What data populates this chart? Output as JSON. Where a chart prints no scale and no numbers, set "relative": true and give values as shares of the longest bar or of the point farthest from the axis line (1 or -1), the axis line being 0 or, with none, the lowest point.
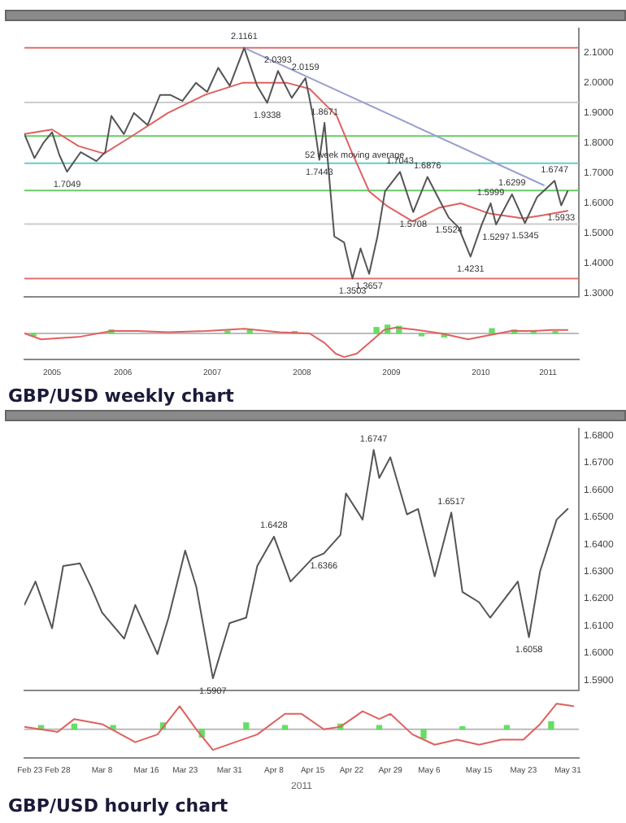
{
  "chart_data": [
    {
      "type": "line",
      "tick_labels": "y",
      "xlim": [
        "2005-05-25",
        "2011-08-05"
      ],
      "ylim": [
        1.29,
        2.18
      ],
      "yticks": [
        {
          "value": 1.3,
          "label": "1.3000"
        },
        {
          "value": 1.4,
          "label": "1.4000"
        },
        {
          "value": 1.5,
          "label": "1.5000"
        },
        {
          "value": 1.6,
          "label": "1.6000"
        },
        {
          "value": 1.7,
          "label": "1.7000"
        },
        {
          "value": 1.8,
          "label": "1.8000"
        },
        {
          "value": 1.9,
          "label": "1.9000"
        },
        {
          "value": 2.0,
          "label": "2.0000"
        },
        {
          "value": 2.1,
          "label": "2.1000"
        }
      ],
      "series": [
        {
          "color": "#555555",
          "x": [
            "2005-05-25",
            "2005-07-05",
            "2005-08-10",
            "2005-09-15",
            "2005-10-15",
            "2005-11-15",
            "2006-01-10",
            "2006-03-15",
            "2006-04-20",
            "2006-05-15",
            "2006-07-05",
            "2006-08-15",
            "2006-10-10",
            "2006-11-30",
            "2007-01-10",
            "2007-03-01",
            "2007-04-25",
            "2007-06-10",
            "2007-07-25",
            "2007-09-10",
            "2007-11-08",
            "2007-12-31",
            "2008-02-10",
            "2008-03-25",
            "2008-05-20",
            "2008-07-15",
            "2008-08-15",
            "2008-09-10",
            "2008-10-01",
            "2008-11-10",
            "2008-12-20",
            "2009-01-23",
            "2009-02-25",
            "2009-04-01",
            "2009-05-05",
            "2009-06-05",
            "2009-08-05",
            "2009-09-28",
            "2009-11-25",
            "2010-01-20",
            "2010-02-20",
            "2010-04-01",
            "2010-05-20",
            "2010-07-05",
            "2010-08-10",
            "2010-09-01",
            "2010-11-05",
            "2010-12-28",
            "2011-02-15",
            "2011-04-28",
            "2011-05-25",
            "2011-06-20"
          ],
          "values": [
            1.83,
            1.75,
            1.8,
            1.836,
            1.76,
            1.7049,
            1.77,
            1.74,
            1.77,
            1.89,
            1.83,
            1.9,
            1.86,
            1.96,
            1.96,
            1.94,
            2.0,
            1.97,
            2.05,
            1.99,
            2.1161,
            1.99,
            1.9338,
            2.0393,
            1.95,
            2.0159,
            1.89,
            1.7443,
            1.8671,
            1.49,
            1.47,
            1.3503,
            1.45,
            1.3657,
            1.49,
            1.64,
            1.7043,
            1.5708,
            1.6876,
            1.6,
            1.5524,
            1.52,
            1.4231,
            1.53,
            1.5999,
            1.5297,
            1.6299,
            1.5345,
            1.62,
            1.6747,
            1.5933,
            1.64
          ]
        },
        {
          "color": "#e06060",
          "x": [
            "2005-05-25",
            "2005-09-15",
            "2006-01-01",
            "2006-04-15",
            "2006-08-01",
            "2007-01-01",
            "2007-06-01",
            "2007-11-01",
            "2008-05-01",
            "2008-08-01",
            "2008-11-20",
            "2009-01-15",
            "2009-04-01",
            "2009-06-15",
            "2009-09-25",
            "2010-01-10",
            "2010-04-10",
            "2010-08-05",
            "2010-12-20",
            "2011-03-10",
            "2011-06-20"
          ],
          "values": [
            1.83,
            1.845,
            1.79,
            1.765,
            1.82,
            1.9,
            1.96,
            2.0,
            2.0,
            1.98,
            1.89,
            1.78,
            1.64,
            1.59,
            1.54,
            1.585,
            1.6,
            1.566,
            1.55,
            1.56,
            1.575
          ]
        },
        {
          "color": "#9aa0d0",
          "x": [
            "2007-11-08",
            "2011-03-15"
          ],
          "values": [
            2.1161,
            1.66
          ]
        }
      ],
      "ref_lines": [
        {
          "axis": "y",
          "value": 2.1161,
          "color": "#e07070"
        },
        {
          "axis": "y",
          "value": 1.935,
          "color": "#cccccc"
        },
        {
          "axis": "y",
          "value": 1.8236,
          "color": "#66cc66"
        },
        {
          "axis": "y",
          "value": 1.7332,
          "color": "#66cccc"
        },
        {
          "axis": "y",
          "value": 1.6428,
          "color": "#66cc66"
        },
        {
          "axis": "y",
          "value": 1.531,
          "color": "#cccccc"
        },
        {
          "axis": "y",
          "value": 1.3503,
          "color": "#e07070"
        }
      ],
      "annotations": [
        {
          "text": "2.1161",
          "x": "2007-11-08",
          "y": 2.1161
        },
        {
          "text": "1.7049",
          "x": "2005-11-15",
          "y": 1.7049
        },
        {
          "text": "1.9338",
          "x": "2008-02-10",
          "y": 1.9338
        },
        {
          "text": "2.0393",
          "x": "2008-03-25",
          "y": 2.0393
        },
        {
          "text": "2.0159",
          "x": "2008-07-15",
          "y": 2.0159
        },
        {
          "text": "1.7443",
          "x": "2008-09-10",
          "y": 1.7443
        },
        {
          "text": "1.8671",
          "x": "2008-10-01",
          "y": 1.8671
        },
        {
          "text": "1.3503",
          "x": "2009-01-23",
          "y": 1.3503
        },
        {
          "text": "1.3657",
          "x": "2009-04-01",
          "y": 1.3657
        },
        {
          "text": "1.7043",
          "x": "2009-08-05",
          "y": 1.7043
        },
        {
          "text": "1.5708",
          "x": "2009-09-28",
          "y": 1.5708
        },
        {
          "text": "1.6876",
          "x": "2009-11-25",
          "y": 1.6876
        },
        {
          "text": "1.5524",
          "x": "2010-02-20",
          "y": 1.5524
        },
        {
          "text": "1.4231",
          "x": "2010-05-20",
          "y": 1.4231
        },
        {
          "text": "1.5999",
          "x": "2010-08-10",
          "y": 1.5999
        },
        {
          "text": "1.5297",
          "x": "2010-09-01",
          "y": 1.5297
        },
        {
          "text": "1.6299",
          "x": "2010-11-05",
          "y": 1.6299
        },
        {
          "text": "1.5345",
          "x": "2010-12-28",
          "y": 1.5345
        },
        {
          "text": "1.6747",
          "x": "2011-04-28",
          "y": 1.6747
        },
        {
          "text": "1.5933",
          "x": "2011-05-25",
          "y": 1.5933
        },
        {
          "text": "52 week moving average",
          "x": "2009-02-01",
          "y": 1.8
        }
      ]
    },
    {
      "type": "line",
      "relative": true,
      "tick_labels": "x",
      "xlim": [
        "2005-05-25",
        "2011-08-05"
      ],
      "xticks": [
        {
          "value": "2005-09-15",
          "label": "2005"
        },
        {
          "value": "2006-07-01",
          "label": "2006"
        },
        {
          "value": "2007-07-01",
          "label": "2007"
        },
        {
          "value": "2008-07-01",
          "label": "2008"
        },
        {
          "value": "2009-07-01",
          "label": "2009"
        },
        {
          "value": "2010-07-01",
          "label": "2010"
        },
        {
          "value": "2011-04-01",
          "label": "2011"
        }
      ],
      "series": [
        {
          "type": "bar",
          "color": "#66dd66",
          "x": [
            "2005-07-01",
            "2006-05-15",
            "2007-09-01",
            "2007-12-01",
            "2008-06-01",
            "2009-05-01",
            "2009-06-15",
            "2009-08-01",
            "2009-11-01",
            "2010-02-01",
            "2010-08-15",
            "2010-11-15",
            "2011-02-01",
            "2011-05-01"
          ],
          "values": [
            -0.1,
            0.15,
            0.1,
            0.15,
            0.08,
            0.25,
            0.35,
            0.3,
            -0.1,
            -0.15,
            0.2,
            0.15,
            0.12,
            0.08
          ]
        },
        {
          "color": "#e06060",
          "x": [
            "2005-05-25",
            "2005-08-01",
            "2006-01-01",
            "2006-05-15",
            "2006-09-01",
            "2007-01-01",
            "2007-06-01",
            "2007-11-08",
            "2008-04-01",
            "2008-08-01",
            "2008-10-01",
            "2008-11-15",
            "2008-12-20",
            "2009-02-10",
            "2009-04-01",
            "2009-06-01",
            "2009-07-20",
            "2009-10-15",
            "2010-01-20",
            "2010-05-10",
            "2010-08-15",
            "2010-11-01",
            "2011-02-01",
            "2011-04-15",
            "2011-06-20"
          ],
          "values": [
            0,
            -0.25,
            -0.15,
            0.1,
            0.1,
            0.05,
            0.1,
            0.2,
            0.05,
            0,
            -0.4,
            -0.85,
            -1,
            -0.85,
            -0.4,
            0.15,
            0.25,
            0.15,
            0,
            -0.25,
            -0.05,
            0.1,
            0.1,
            0.15,
            0.15
          ]
        }
      ],
      "ref_lines": [
        {
          "axis": "y",
          "value": 0,
          "color": "#bbbbbb"
        }
      ],
      "annotations": [
        "GBP/USD weekly chart"
      ]
    },
    {
      "type": "line",
      "tick_labels": "y",
      "xlim": [
        "2011-02-22",
        "2011-06-02"
      ],
      "ylim": [
        1.5863,
        1.6825
      ],
      "yticks": [
        {
          "value": 1.59,
          "label": "1.5900"
        },
        {
          "value": 1.6,
          "label": "1.6000"
        },
        {
          "value": 1.61,
          "label": "1.6100"
        },
        {
          "value": 1.62,
          "label": "1.6200"
        },
        {
          "value": 1.63,
          "label": "1.6300"
        },
        {
          "value": 1.64,
          "label": "1.6400"
        },
        {
          "value": 1.65,
          "label": "1.6500"
        },
        {
          "value": 1.66,
          "label": "1.6600"
        },
        {
          "value": 1.67,
          "label": "1.6700"
        },
        {
          "value": 1.68,
          "label": "1.6800"
        }
      ],
      "series": [
        {
          "color": "#555555",
          "x": [
            "2011-02-22",
            "2011-02-24",
            "2011-02-27",
            "2011-03-01",
            "2011-03-04",
            "2011-03-06",
            "2011-03-08",
            "2011-03-12",
            "2011-03-14",
            "2011-03-18",
            "2011-03-20",
            "2011-03-23",
            "2011-03-25",
            "2011-03-28",
            "2011-03-31",
            "2011-04-03",
            "2011-04-05",
            "2011-04-08",
            "2011-04-11",
            "2011-04-15",
            "2011-04-17",
            "2011-04-20",
            "2011-04-21",
            "2011-04-24",
            "2011-04-26",
            "2011-04-27",
            "2011-04-29",
            "2011-05-02",
            "2011-05-04",
            "2011-05-07",
            "2011-05-10",
            "2011-05-12",
            "2011-05-15",
            "2011-05-17",
            "2011-05-22",
            "2011-05-24",
            "2011-05-26",
            "2011-05-29",
            "2011-05-31"
          ],
          "values": [
            1.6177,
            1.6263,
            1.6091,
            1.632,
            1.633,
            1.6244,
            1.6149,
            1.6053,
            1.6177,
            1.5996,
            1.613,
            1.6377,
            1.6244,
            1.5907,
            1.611,
            1.613,
            1.632,
            1.6428,
            1.6263,
            1.6349,
            1.6366,
            1.6434,
            1.6587,
            1.6491,
            1.6747,
            1.6644,
            1.672,
            1.651,
            1.653,
            1.6282,
            1.6517,
            1.6225,
            1.6187,
            1.613,
            1.6263,
            1.6058,
            1.63,
            1.6491,
            1.653
          ]
        }
      ],
      "annotations": [
        {
          "text": "1.5907",
          "x": "2011-03-28",
          "y": 1.5907
        },
        {
          "text": "1.6428",
          "x": "2011-04-08",
          "y": 1.6428
        },
        {
          "text": "1.6366",
          "x": "2011-04-17",
          "y": 1.6366
        },
        {
          "text": "1.6747",
          "x": "2011-04-26",
          "y": 1.6747
        },
        {
          "text": "1.6517",
          "x": "2011-05-10",
          "y": 1.6517
        },
        {
          "text": "1.6058",
          "x": "2011-05-24",
          "y": 1.6058
        }
      ]
    },
    {
      "type": "line",
      "relative": true,
      "tick_labels": "x",
      "xlabel": "2011",
      "xlim": [
        "2011-02-22",
        "2011-06-02"
      ],
      "xticks": [
        {
          "value": "2011-02-23",
          "label": "Feb 23"
        },
        {
          "value": "2011-02-28",
          "label": "Feb 28"
        },
        {
          "value": "2011-03-08",
          "label": "Mar 8"
        },
        {
          "value": "2011-03-16",
          "label": "Mar 16"
        },
        {
          "value": "2011-03-23",
          "label": "Mar 23"
        },
        {
          "value": "2011-03-31",
          "label": "Mar 31"
        },
        {
          "value": "2011-04-08",
          "label": "Apr 8"
        },
        {
          "value": "2011-04-15",
          "label": "Apr 15"
        },
        {
          "value": "2011-04-22",
          "label": "Apr 22"
        },
        {
          "value": "2011-04-29",
          "label": "Apr 29"
        },
        {
          "value": "2011-05-06",
          "label": "May 6"
        },
        {
          "value": "2011-05-15",
          "label": "May 15"
        },
        {
          "value": "2011-05-23",
          "label": "May 23"
        },
        {
          "value": "2011-05-31",
          "label": "May 31"
        }
      ],
      "series": [
        {
          "type": "bar",
          "color": "#66dd66",
          "x": [
            "2011-02-25",
            "2011-03-03",
            "2011-03-10",
            "2011-03-19",
            "2011-03-26",
            "2011-04-03",
            "2011-04-10",
            "2011-04-20",
            "2011-04-27",
            "2011-05-05",
            "2011-05-12",
            "2011-05-20",
            "2011-05-28"
          ],
          "values": [
            0.15,
            0.2,
            0.15,
            0.25,
            -0.3,
            0.25,
            0.15,
            0.2,
            0.15,
            -0.35,
            0.1,
            0.15,
            0.3
          ]
        },
        {
          "color": "#e06060",
          "x": [
            "2011-02-22",
            "2011-02-28",
            "2011-03-03",
            "2011-03-08",
            "2011-03-14",
            "2011-03-18",
            "2011-03-22",
            "2011-03-25",
            "2011-03-28",
            "2011-04-01",
            "2011-04-05",
            "2011-04-10",
            "2011-04-13",
            "2011-04-17",
            "2011-04-20",
            "2011-04-24",
            "2011-04-27",
            "2011-04-29",
            "2011-05-03",
            "2011-05-07",
            "2011-05-11",
            "2011-05-15",
            "2011-05-19",
            "2011-05-23",
            "2011-05-26",
            "2011-05-29",
            "2011-06-01"
          ],
          "values": [
            0.1,
            -0.1,
            0.4,
            0.2,
            -0.5,
            -0.2,
            0.9,
            0,
            -0.8,
            -0.5,
            -0.2,
            0.6,
            0.6,
            0,
            0.1,
            0.7,
            0.4,
            0.6,
            -0.2,
            -0.6,
            -0.4,
            -0.6,
            -0.4,
            -0.4,
            0.2,
            1,
            0.9
          ]
        }
      ],
      "ref_lines": [
        {
          "axis": "y",
          "value": 0,
          "color": "#bbbbbb"
        }
      ],
      "annotations": [
        "GBP/USD hourly chart"
      ]
    }
  ]
}
